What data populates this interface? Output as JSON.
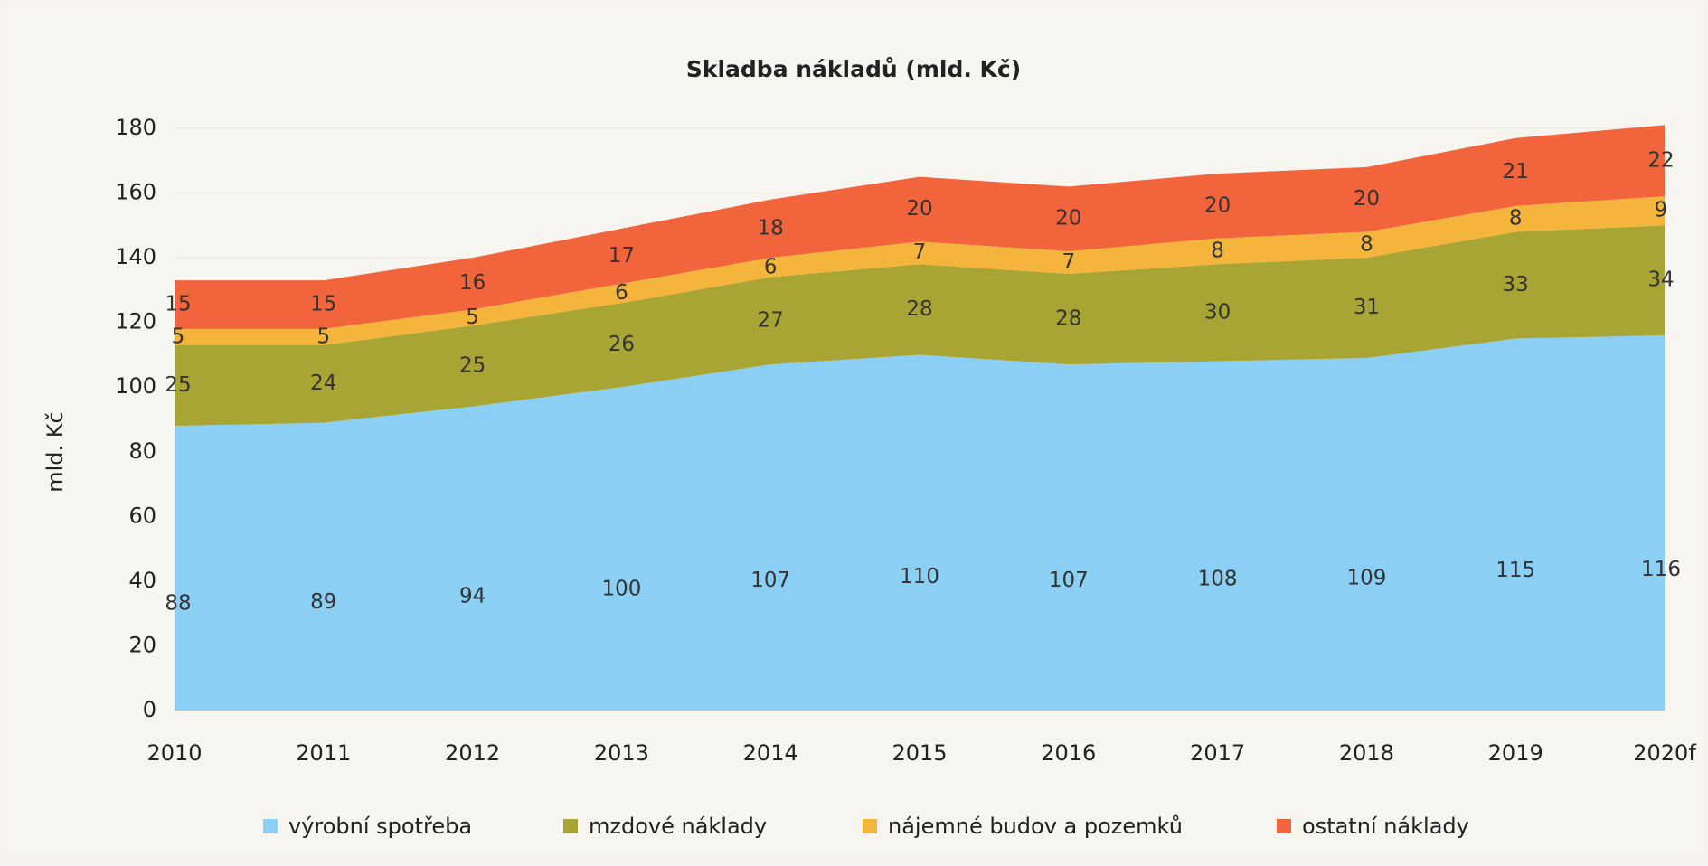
{
  "chart_data": {
    "type": "stacked_area",
    "title": "Skladba nákladů (mld. Kč)",
    "y_label": "mld. Kč",
    "categories": [
      "2010",
      "2011",
      "2012",
      "2013",
      "2014",
      "2015",
      "2016",
      "2017",
      "2018",
      "2019",
      "2020f"
    ],
    "series": [
      {
        "name": "výrobní spotřeba",
        "color": "#8ccff4",
        "values": [
          88,
          89,
          94,
          100,
          107,
          110,
          107,
          108,
          109,
          115,
          116
        ]
      },
      {
        "name": "mzdové náklady",
        "color": "#a8a534",
        "values": [
          25,
          24,
          25,
          26,
          27,
          28,
          28,
          30,
          31,
          33,
          34
        ]
      },
      {
        "name": "nájemné budov a pozemků",
        "color": "#f5b43c",
        "values": [
          5,
          5,
          5,
          6,
          6,
          7,
          7,
          8,
          8,
          8,
          9
        ]
      },
      {
        "name": "ostatní náklady",
        "color": "#f2643b",
        "values": [
          15,
          15,
          16,
          17,
          18,
          20,
          20,
          20,
          20,
          21,
          22
        ]
      }
    ],
    "ylim": [
      0,
      180
    ],
    "yticks": [
      0,
      20,
      40,
      60,
      80,
      100,
      120,
      140,
      160,
      180
    ],
    "grid": true,
    "legend": "bottom"
  }
}
